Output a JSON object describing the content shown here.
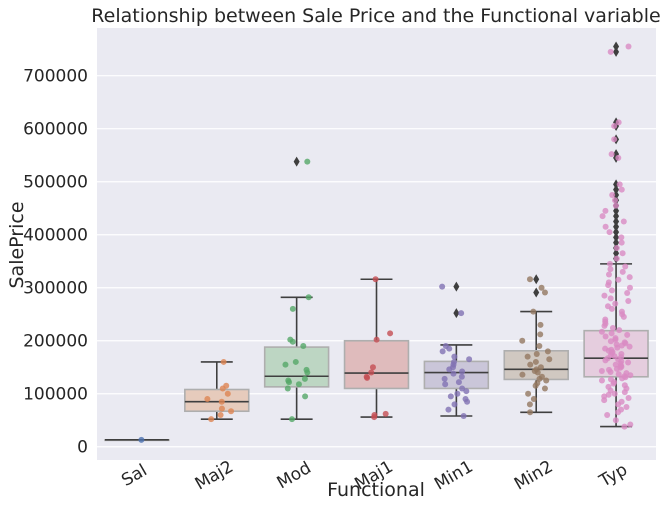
{
  "chart_data": {
    "type": "boxplot+stripplot",
    "title": "Relationship between Sale Price and the Functional variable",
    "xlabel": "Functional",
    "ylabel": "SalePrice",
    "ylim": [
      -25000,
      790000
    ],
    "yticks": [
      0,
      100000,
      200000,
      300000,
      400000,
      500000,
      600000,
      700000
    ],
    "ytick_labels": [
      "0",
      "100000",
      "200000",
      "300000",
      "400000",
      "500000",
      "600000",
      "700000"
    ],
    "grid": true,
    "categories": [
      "Sal",
      "Maj2",
      "Mod",
      "Maj1",
      "Min1",
      "Min2",
      "Typ"
    ],
    "colors": {
      "Sal": "#4c72b0",
      "Maj2": "#dd8452",
      "Mod": "#55a868",
      "Maj1": "#c44e52",
      "Min1": "#8172b3",
      "Min2": "#937860",
      "Typ": "#da8bc3"
    },
    "boxes": [
      {
        "category": "Sal",
        "whisker_low": 13000,
        "q1": 13000,
        "median": 13000,
        "q3": 13000,
        "whisker_high": 13000,
        "outliers": []
      },
      {
        "category": "Maj2",
        "whisker_low": 52000,
        "q1": 67000,
        "median": 85000,
        "q3": 108000,
        "whisker_high": 160000,
        "outliers": []
      },
      {
        "category": "Mod",
        "whisker_low": 52000,
        "q1": 113000,
        "median": 133000,
        "q3": 188000,
        "whisker_high": 282000,
        "outliers": [
          538000
        ]
      },
      {
        "category": "Maj1",
        "whisker_low": 56000,
        "q1": 110000,
        "median": 139000,
        "q3": 200000,
        "whisker_high": 316000,
        "outliers": []
      },
      {
        "category": "Min1",
        "whisker_low": 58000,
        "q1": 110000,
        "median": 140000,
        "q3": 161000,
        "whisker_high": 192000,
        "outliers": [
          252000,
          302000
        ]
      },
      {
        "category": "Min2",
        "whisker_low": 65000,
        "q1": 127000,
        "median": 146000,
        "q3": 181000,
        "whisker_high": 255000,
        "outliers": [
          291000,
          316000
        ]
      },
      {
        "category": "Typ",
        "whisker_low": 38000,
        "q1": 132000,
        "median": 167000,
        "q3": 219000,
        "whisker_high": 345000,
        "outliers": [
          355000,
          365000,
          375000,
          385000,
          395000,
          405000,
          415000,
          425000,
          435000,
          445000,
          455000,
          465000,
          475000,
          485000,
          495000,
          545000,
          552000,
          580000,
          605000,
          612000,
          745000,
          755000
        ]
      }
    ],
    "strip_points": {
      "Sal": [
        13000
      ],
      "Maj2": [
        52000,
        60000,
        67000,
        72000,
        85000,
        90000,
        100000,
        110000,
        115000,
        160000
      ],
      "Mod": [
        52000,
        95000,
        110000,
        118000,
        122000,
        125000,
        128000,
        140000,
        145000,
        155000,
        160000,
        190000,
        198000,
        202000,
        260000,
        282000,
        538000
      ],
      "Maj1": [
        56000,
        60000,
        62000,
        130000,
        132000,
        140000,
        150000,
        202000,
        214000,
        316000
      ],
      "Min1": [
        58000,
        70000,
        80000,
        85000,
        90000,
        95000,
        100000,
        105000,
        110000,
        118000,
        122000,
        128000,
        132000,
        138000,
        142000,
        146000,
        150000,
        155000,
        160000,
        165000,
        170000,
        180000,
        185000,
        190000,
        252000,
        302000
      ],
      "Min2": [
        65000,
        80000,
        90000,
        100000,
        110000,
        115000,
        120000,
        125000,
        128000,
        132000,
        136000,
        140000,
        143000,
        146000,
        150000,
        155000,
        160000,
        165000,
        170000,
        175000,
        180000,
        190000,
        200000,
        212000,
        230000,
        255000,
        291000,
        300000,
        316000
      ],
      "Typ": [
        38000,
        42000,
        50000,
        60000,
        65000,
        70000,
        75000,
        80000,
        85000,
        88000,
        92000,
        95000,
        98000,
        100000,
        103000,
        106000,
        110000,
        113000,
        116000,
        119000,
        122000,
        125000,
        127000,
        129000,
        131000,
        133000,
        135000,
        137000,
        139000,
        141000,
        143000,
        145000,
        147000,
        149000,
        151000,
        153000,
        155000,
        157000,
        159000,
        161000,
        163000,
        165000,
        167000,
        169000,
        171000,
        173000,
        175000,
        177000,
        179000,
        181000,
        183000,
        185000,
        187000,
        189000,
        191000,
        193000,
        195000,
        197000,
        199000,
        202000,
        205000,
        208000,
        211000,
        214000,
        217000,
        220000,
        224000,
        228000,
        232000,
        236000,
        240000,
        245000,
        250000,
        255000,
        260000,
        265000,
        270000,
        275000,
        280000,
        285000,
        290000,
        295000,
        300000,
        305000,
        310000,
        315000,
        320000,
        325000,
        330000,
        335000,
        340000,
        345000,
        355000,
        365000,
        375000,
        385000,
        395000,
        405000,
        415000,
        425000,
        435000,
        445000,
        455000,
        465000,
        475000,
        485000,
        495000,
        545000,
        552000,
        580000,
        605000,
        612000,
        745000,
        755000
      ]
    }
  }
}
